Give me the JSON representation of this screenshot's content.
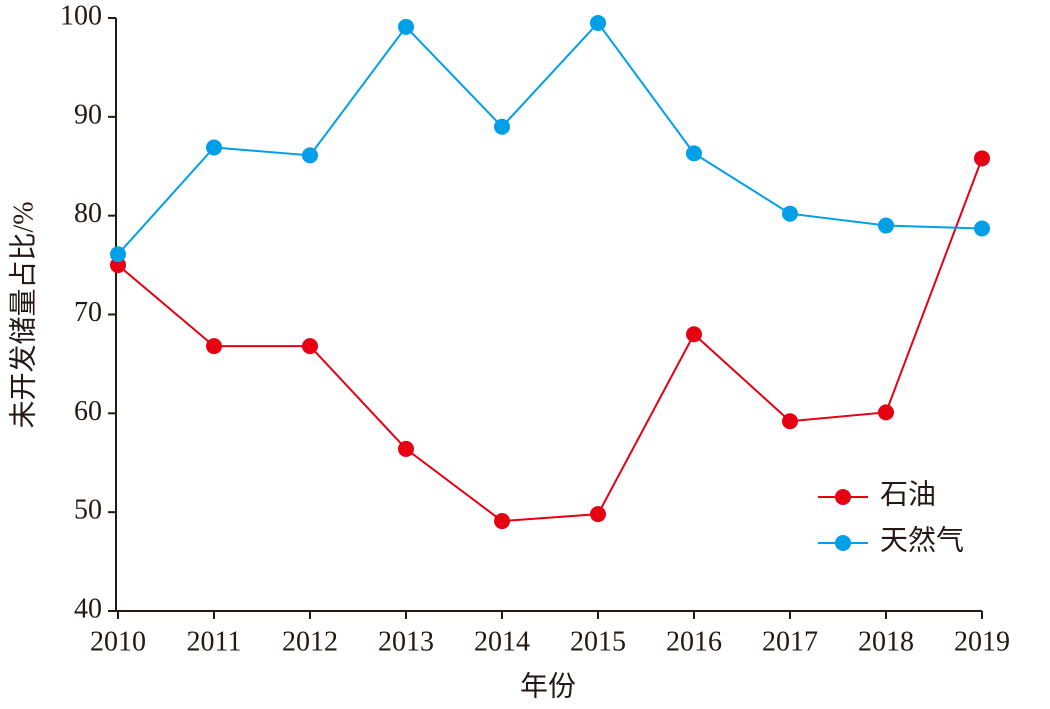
{
  "chart_data": {
    "type": "line",
    "x_label": "年份",
    "y_label": "未开发储量占比/%",
    "categories": [
      "2010",
      "2011",
      "2012",
      "2013",
      "2014",
      "2015",
      "2016",
      "2017",
      "2018",
      "2019"
    ],
    "series": [
      {
        "name": "石油",
        "color": "#e60012",
        "values": [
          75.0,
          66.8,
          66.8,
          56.4,
          49.1,
          49.8,
          68.0,
          59.2,
          60.1,
          85.8
        ]
      },
      {
        "name": "天然气",
        "color": "#00a0e9",
        "values": [
          76.1,
          86.9,
          86.1,
          99.1,
          89.0,
          99.5,
          86.3,
          80.2,
          79.0,
          78.7
        ]
      }
    ],
    "ylim": [
      40,
      100
    ],
    "yticks": [
      40,
      50,
      60,
      70,
      80,
      90,
      100
    ],
    "grid": false,
    "legend": "lower right"
  }
}
